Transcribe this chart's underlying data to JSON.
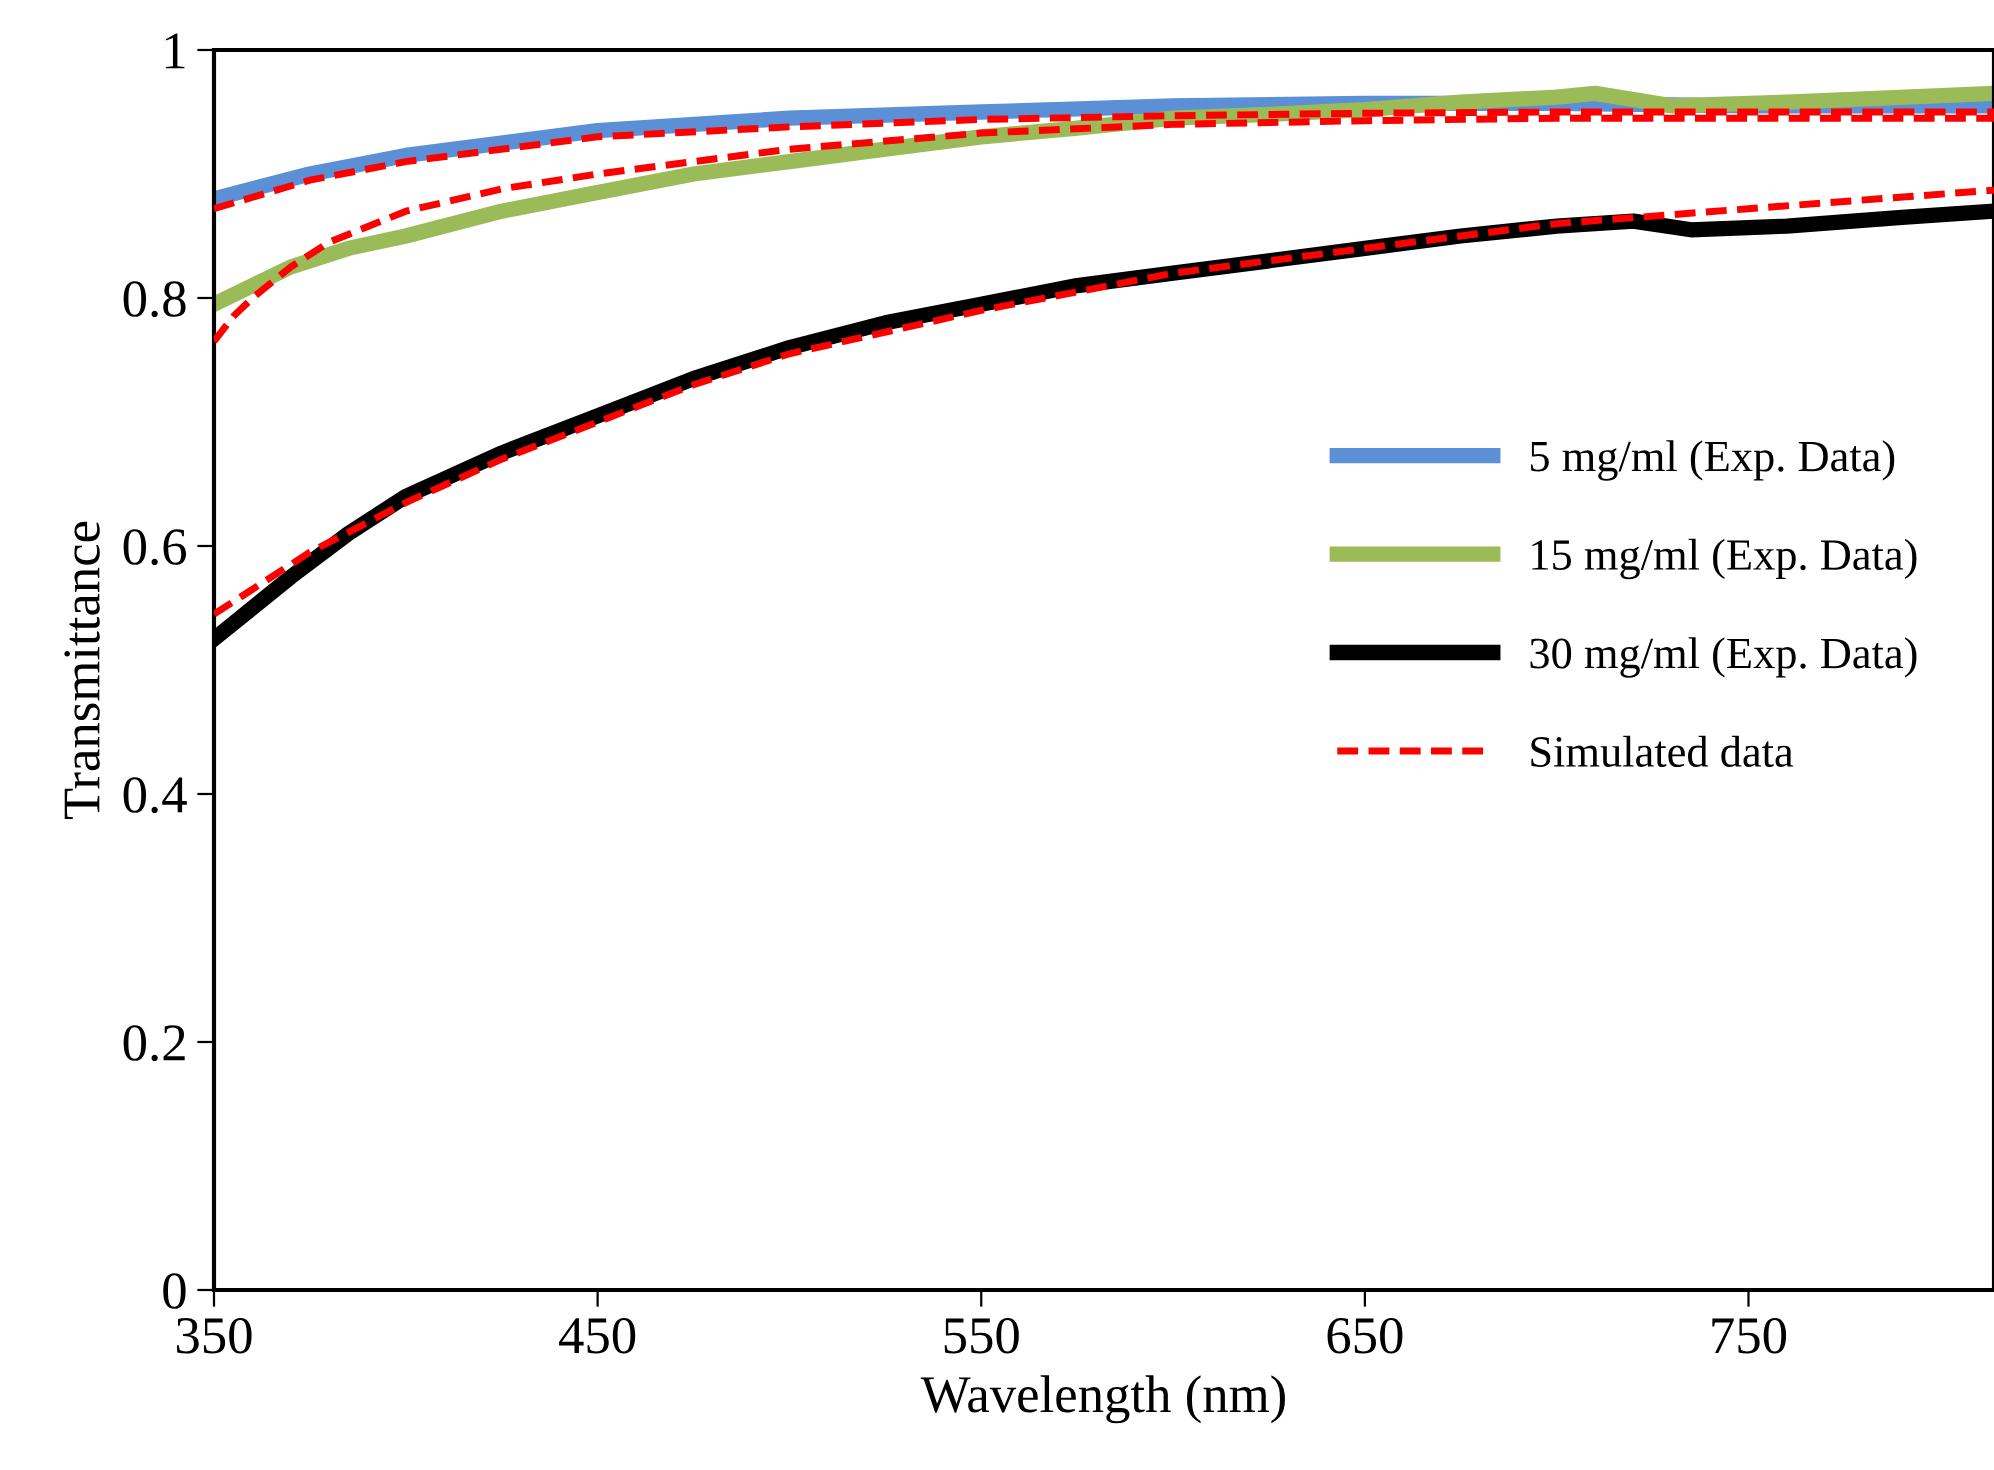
{
  "chart_data": {
    "type": "line",
    "xlabel": "Wavelength (nm)",
    "ylabel": "Transmittance",
    "xlim": [
      350,
      814
    ],
    "ylim": [
      0,
      1
    ],
    "xticks": [
      350,
      450,
      550,
      650,
      750
    ],
    "yticks": [
      0,
      0.2,
      0.4,
      0.6,
      0.8,
      1
    ],
    "grid": false,
    "legend": "right",
    "marker": "none",
    "series": [
      {
        "name": "5 mg/ml (Exp. Data)",
        "color": "#5b8fd6",
        "line_style": "solid",
        "x": [
          350,
          375,
          400,
          450,
          500,
          550,
          600,
          650,
          700,
          750,
          814
        ],
        "values": [
          0.88,
          0.9,
          0.915,
          0.935,
          0.945,
          0.95,
          0.955,
          0.957,
          0.957,
          0.955,
          0.955
        ]
      },
      {
        "name": "15 mg/ml (Exp. Data)",
        "color": "#9bbb59",
        "line_style": "solid",
        "x": [
          350,
          360,
          370,
          385,
          400,
          425,
          450,
          475,
          500,
          525,
          550,
          575,
          600,
          625,
          650,
          675,
          700,
          710,
          730,
          760,
          814
        ],
        "values": [
          0.795,
          0.81,
          0.825,
          0.84,
          0.85,
          0.87,
          0.885,
          0.9,
          0.91,
          0.92,
          0.93,
          0.937,
          0.945,
          0.948,
          0.952,
          0.958,
          0.962,
          0.965,
          0.955,
          0.958,
          0.965
        ]
      },
      {
        "name": "30 mg/ml (Exp. Data)",
        "color": "#000000",
        "line_style": "solid",
        "x": [
          350,
          360,
          370,
          385,
          400,
          425,
          450,
          475,
          500,
          525,
          550,
          575,
          600,
          625,
          650,
          675,
          700,
          720,
          735,
          760,
          790,
          814
        ],
        "values": [
          0.525,
          0.55,
          0.575,
          0.61,
          0.64,
          0.675,
          0.705,
          0.735,
          0.76,
          0.78,
          0.795,
          0.81,
          0.82,
          0.83,
          0.84,
          0.85,
          0.858,
          0.862,
          0.855,
          0.858,
          0.865,
          0.87
        ]
      },
      {
        "name": "Simulated data",
        "color": "#ff0000",
        "line_style": "dashed",
        "x": [
          350,
          375,
          400,
          450,
          500,
          550,
          600,
          650,
          700,
          750,
          814
        ],
        "values": [
          0.872,
          0.895,
          0.91,
          0.93,
          0.938,
          0.944,
          0.947,
          0.949,
          0.95,
          0.95,
          0.95
        ]
      },
      {
        "color": "#ff0000",
        "line_style": "dashed",
        "x": [
          350,
          355,
          360,
          370,
          380,
          400,
          425,
          450,
          500,
          550,
          600,
          650,
          700,
          750,
          814
        ],
        "values": [
          0.765,
          0.785,
          0.8,
          0.825,
          0.845,
          0.87,
          0.888,
          0.9,
          0.92,
          0.933,
          0.94,
          0.943,
          0.945,
          0.945,
          0.945
        ]
      },
      {
        "color": "#ff0000",
        "line_style": "dashed",
        "x": [
          350,
          375,
          400,
          425,
          450,
          475,
          500,
          550,
          600,
          650,
          700,
          750,
          814
        ],
        "values": [
          0.545,
          0.595,
          0.635,
          0.67,
          0.7,
          0.73,
          0.755,
          0.79,
          0.82,
          0.84,
          0.86,
          0.872,
          0.887
        ]
      }
    ]
  }
}
